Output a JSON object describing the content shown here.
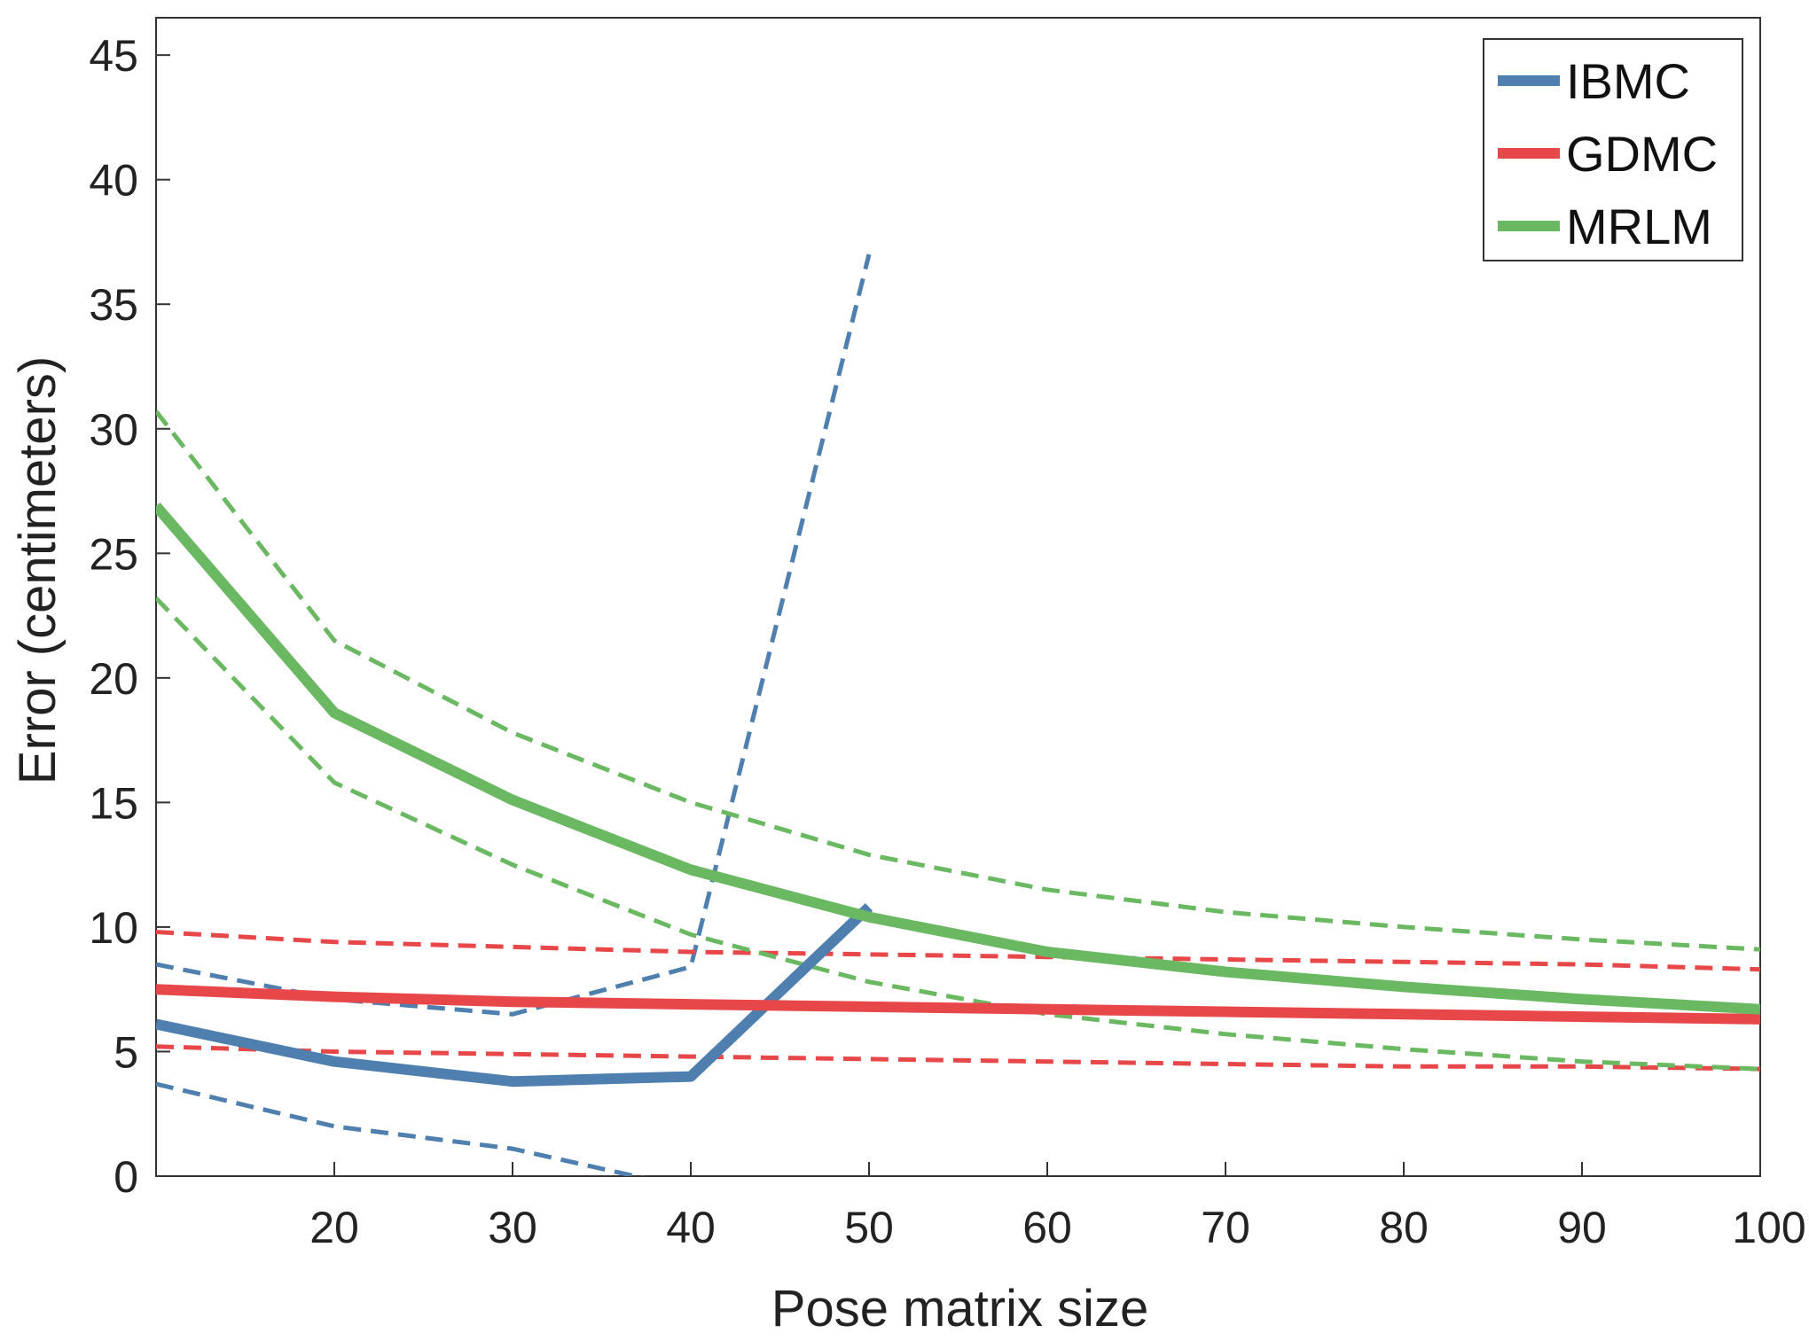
{
  "chart_data": {
    "type": "line",
    "xlabel": "Pose matrix size",
    "ylabel": "Error (centimeters)",
    "xlim": [
      10,
      100
    ],
    "ylim": [
      0,
      46.5
    ],
    "xticks": [
      20,
      30,
      40,
      50,
      60,
      70,
      80,
      90,
      100
    ],
    "yticks": [
      0,
      5,
      10,
      15,
      20,
      25,
      30,
      35,
      40,
      45
    ],
    "grid": false,
    "legend": "top-right",
    "series": [
      {
        "name": "IBMC",
        "color": "#4f7fae",
        "x": [
          10,
          20,
          30,
          40,
          50
        ],
        "values": [
          6.1,
          4.6,
          3.8,
          4.0,
          10.8
        ],
        "upper": [
          8.5,
          7.1,
          6.5,
          8.4,
          37.0
        ],
        "lower": [
          3.7,
          2.0,
          1.1,
          -0.5,
          null
        ]
      },
      {
        "name": "GDMC",
        "color": "#e8474a",
        "x": [
          10,
          20,
          30,
          40,
          50,
          60,
          70,
          80,
          90,
          100
        ],
        "values": [
          7.5,
          7.2,
          7.0,
          6.9,
          6.8,
          6.7,
          6.6,
          6.5,
          6.4,
          6.3
        ],
        "upper": [
          9.8,
          9.4,
          9.2,
          9.0,
          8.9,
          8.8,
          8.7,
          8.6,
          8.5,
          8.3
        ],
        "lower": [
          5.2,
          5.0,
          4.9,
          4.8,
          4.7,
          4.6,
          4.5,
          4.4,
          4.4,
          4.3
        ]
      },
      {
        "name": "MRLM",
        "color": "#6ab862",
        "x": [
          10,
          20,
          30,
          40,
          50,
          60,
          70,
          80,
          90,
          100
        ],
        "values": [
          26.9,
          18.6,
          15.1,
          12.3,
          10.4,
          9.0,
          8.2,
          7.6,
          7.1,
          6.7
        ],
        "upper": [
          30.7,
          21.5,
          17.8,
          15.0,
          12.9,
          11.5,
          10.6,
          10.0,
          9.5,
          9.1
        ],
        "lower": [
          23.2,
          15.8,
          12.5,
          9.7,
          7.8,
          6.5,
          5.7,
          5.1,
          4.6,
          4.3
        ]
      }
    ]
  }
}
